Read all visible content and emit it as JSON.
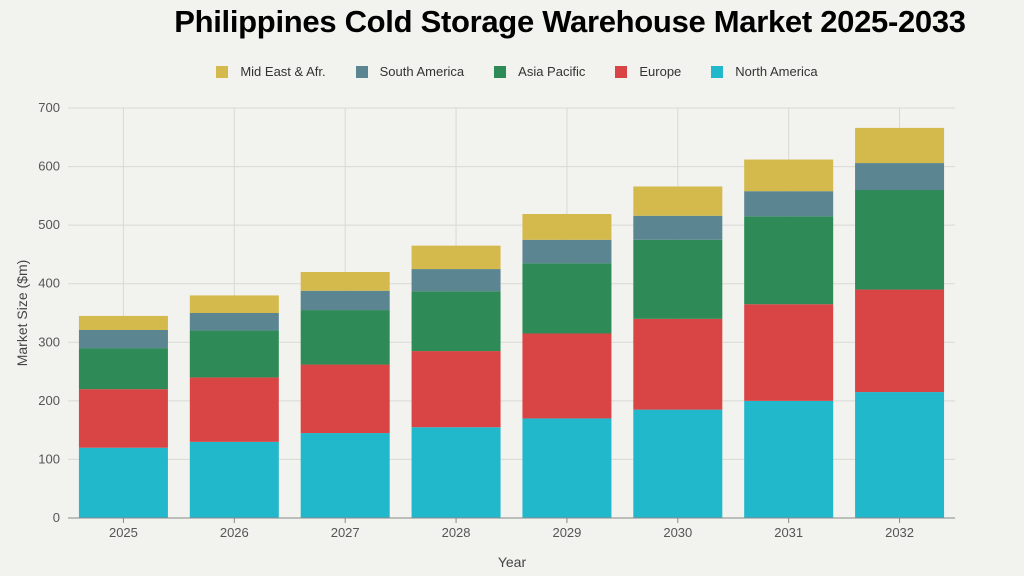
{
  "chart_data": {
    "type": "bar",
    "stacked": true,
    "title": "Philippines Cold Storage Warehouse Market 2025-2033",
    "xlabel": "Year",
    "ylabel": "Market Size ($m)",
    "ylim": [
      0,
      700
    ],
    "yticks": [
      0,
      100,
      200,
      300,
      400,
      500,
      600,
      700
    ],
    "grid": true,
    "legend_position": "top",
    "categories": [
      "2025",
      "2026",
      "2027",
      "2028",
      "2029",
      "2030",
      "2031",
      "2032"
    ],
    "series": [
      {
        "name": "North America",
        "color": "#22b8cc",
        "values": [
          120,
          130,
          145,
          155,
          170,
          185,
          200,
          215
        ]
      },
      {
        "name": "Europe",
        "color": "#d94545",
        "values": [
          100,
          110,
          117,
          130,
          145,
          155,
          165,
          175
        ]
      },
      {
        "name": "Asia Pacific",
        "color": "#2e8b57",
        "values": [
          70,
          80,
          93,
          102,
          120,
          135,
          150,
          170
        ]
      },
      {
        "name": "South America",
        "color": "#5b8590",
        "values": [
          31,
          30,
          33,
          38,
          40,
          41,
          43,
          46
        ]
      },
      {
        "name": "Mid East & Afr.",
        "color": "#d4ba4c",
        "values": [
          24,
          30,
          32,
          40,
          44,
          50,
          54,
          60
        ]
      }
    ]
  }
}
